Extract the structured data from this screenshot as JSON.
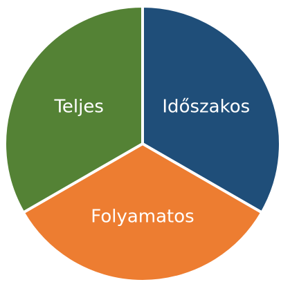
{
  "chart_data": {
    "type": "pie",
    "categories": [
      "Időszakos",
      "Folyamatos",
      "Teljes"
    ],
    "values": [
      33.3,
      33.3,
      33.3
    ],
    "colors": [
      "#1f4e79",
      "#ed7d31",
      "#548235"
    ],
    "start_angle": 0,
    "direction": "clockwise"
  }
}
